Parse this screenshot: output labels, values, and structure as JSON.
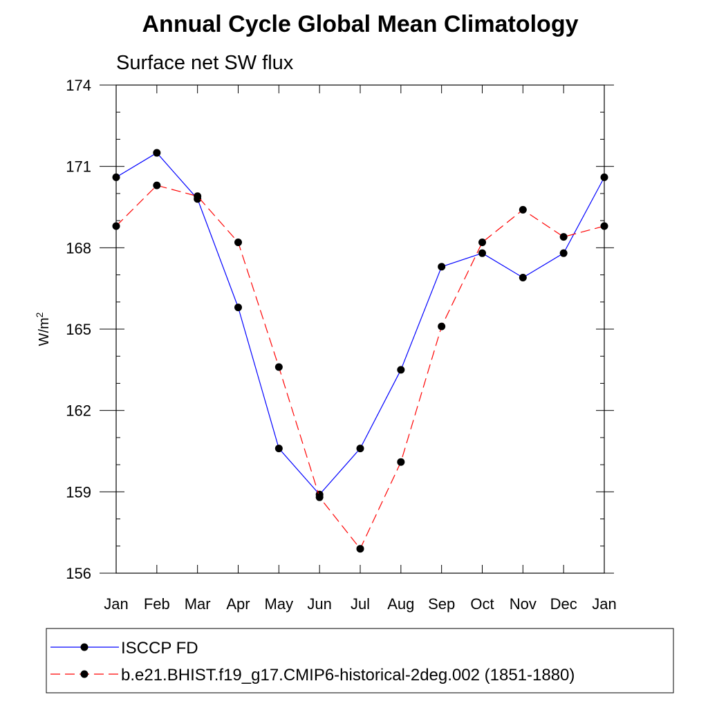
{
  "chart_data": {
    "type": "line",
    "title": "Annual Cycle Global Mean Climatology",
    "subtitle": "Surface net SW flux",
    "xlabel": "",
    "ylabel": "W/m",
    "ylabel_sup": "2",
    "categories": [
      "Jan",
      "Feb",
      "Mar",
      "Apr",
      "May",
      "Jun",
      "Jul",
      "Aug",
      "Sep",
      "Oct",
      "Nov",
      "Dec",
      "Jan"
    ],
    "ylim": [
      156,
      174
    ],
    "yticks": [
      156,
      159,
      162,
      165,
      168,
      171,
      174
    ],
    "grid": false,
    "legend_position": "bottom",
    "series": [
      {
        "name": "ISCCP FD",
        "color": "#0000ff",
        "line_style": "solid",
        "marker": "filled-circle",
        "values": [
          170.6,
          171.5,
          169.8,
          165.8,
          160.6,
          158.9,
          160.6,
          163.5,
          167.3,
          167.8,
          166.9,
          167.8,
          170.6
        ]
      },
      {
        "name": "b.e21.BHIST.f19_g17.CMIP6-historical-2deg.002 (1851-1880)",
        "color": "#ff0000",
        "line_style": "dashed",
        "marker": "filled-circle",
        "values": [
          168.8,
          170.3,
          169.9,
          168.2,
          163.6,
          158.8,
          156.9,
          160.1,
          165.1,
          168.2,
          169.4,
          168.4,
          168.8
        ]
      }
    ]
  }
}
